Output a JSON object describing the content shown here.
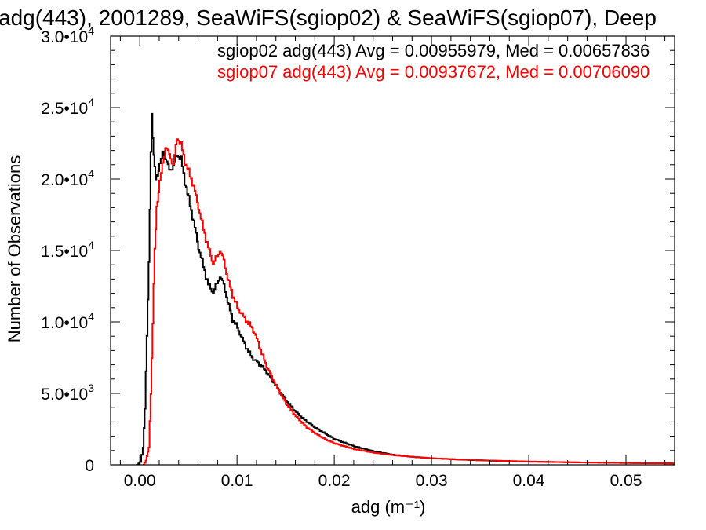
{
  "chart_data": {
    "type": "line",
    "title": "adg(443), 2001289, SeaWiFS(sgiop02) & SeaWiFS(sgiop07), Deep",
    "xlabel": "adg (m⁻¹)",
    "ylabel": "Number of Observations",
    "xlim": [
      -0.003,
      0.055
    ],
    "ylim": [
      0,
      30000
    ],
    "x_ticks": [
      {
        "value": 0.0,
        "label": "0.00"
      },
      {
        "value": 0.01,
        "label": "0.01"
      },
      {
        "value": 0.02,
        "label": "0.02"
      },
      {
        "value": 0.03,
        "label": "0.03"
      },
      {
        "value": 0.04,
        "label": "0.04"
      },
      {
        "value": 0.05,
        "label": "0.05"
      }
    ],
    "y_ticks": [
      {
        "value": 0,
        "mantissa": "0",
        "exponent": ""
      },
      {
        "value": 5000,
        "mantissa": "5.0•10",
        "exponent": "3"
      },
      {
        "value": 10000,
        "mantissa": "1.0•10",
        "exponent": "4"
      },
      {
        "value": 15000,
        "mantissa": "1.5•10",
        "exponent": "4"
      },
      {
        "value": 20000,
        "mantissa": "2.0•10",
        "exponent": "4"
      },
      {
        "value": 25000,
        "mantissa": "2.5•10",
        "exponent": "4"
      },
      {
        "value": 30000,
        "mantissa": "3.0•10",
        "exponent": "4"
      }
    ],
    "grid": false,
    "legend": [
      {
        "text": "sgiop02 adg(443) Avg = 0.00955979, Med = 0.00657836",
        "color": "#000000"
      },
      {
        "text": "sgiop07 adg(443) Avg = 0.00937672, Med = 0.00706090",
        "color": "#ff0000"
      }
    ],
    "series": [
      {
        "name": "sgiop02",
        "color": "#000000",
        "points": [
          [
            -0.0003,
            0
          ],
          [
            0.0,
            200
          ],
          [
            0.0003,
            1200
          ],
          [
            0.0005,
            4000
          ],
          [
            0.0007,
            9000
          ],
          [
            0.0009,
            14000
          ],
          [
            0.0011,
            22000
          ],
          [
            0.0012,
            24600
          ],
          [
            0.0013,
            23000
          ],
          [
            0.0014,
            21500
          ],
          [
            0.0016,
            20000
          ],
          [
            0.0018,
            20400
          ],
          [
            0.002,
            21000
          ],
          [
            0.0023,
            21800
          ],
          [
            0.0026,
            21500
          ],
          [
            0.003,
            20600
          ],
          [
            0.0034,
            20900
          ],
          [
            0.0038,
            21700
          ],
          [
            0.0042,
            21400
          ],
          [
            0.0046,
            19800
          ],
          [
            0.005,
            18600
          ],
          [
            0.0055,
            17000
          ],
          [
            0.006,
            15200
          ],
          [
            0.0065,
            13900
          ],
          [
            0.007,
            12600
          ],
          [
            0.0075,
            12100
          ],
          [
            0.0079,
            12700
          ],
          [
            0.0082,
            13200
          ],
          [
            0.0086,
            12600
          ],
          [
            0.009,
            11400
          ],
          [
            0.0095,
            10200
          ],
          [
            0.01,
            9600
          ],
          [
            0.0105,
            8800
          ],
          [
            0.011,
            8100
          ],
          [
            0.0115,
            7500
          ],
          [
            0.012,
            7200
          ],
          [
            0.0125,
            6900
          ],
          [
            0.013,
            6500
          ],
          [
            0.014,
            5500
          ],
          [
            0.015,
            4500
          ],
          [
            0.016,
            3700
          ],
          [
            0.017,
            3100
          ],
          [
            0.018,
            2600
          ],
          [
            0.019,
            2200
          ],
          [
            0.02,
            1800
          ],
          [
            0.022,
            1300
          ],
          [
            0.024,
            950
          ],
          [
            0.026,
            700
          ],
          [
            0.028,
            560
          ],
          [
            0.03,
            460
          ],
          [
            0.033,
            360
          ],
          [
            0.036,
            290
          ],
          [
            0.04,
            220
          ],
          [
            0.045,
            170
          ],
          [
            0.05,
            130
          ],
          [
            0.055,
            100
          ]
        ]
      },
      {
        "name": "sgiop07",
        "color": "#ff0000",
        "points": [
          [
            0.0003,
            0
          ],
          [
            0.0006,
            300
          ],
          [
            0.0009,
            1200
          ],
          [
            0.0011,
            5000
          ],
          [
            0.0013,
            10000
          ],
          [
            0.0015,
            15000
          ],
          [
            0.0017,
            18000
          ],
          [
            0.002,
            19800
          ],
          [
            0.0023,
            21000
          ],
          [
            0.0026,
            22300
          ],
          [
            0.003,
            21700
          ],
          [
            0.0034,
            21000
          ],
          [
            0.0038,
            22900
          ],
          [
            0.0042,
            22400
          ],
          [
            0.0046,
            21200
          ],
          [
            0.005,
            20500
          ],
          [
            0.0055,
            19500
          ],
          [
            0.006,
            18000
          ],
          [
            0.0065,
            16500
          ],
          [
            0.007,
            15200
          ],
          [
            0.0075,
            14100
          ],
          [
            0.0079,
            14600
          ],
          [
            0.0082,
            15000
          ],
          [
            0.0086,
            14300
          ],
          [
            0.009,
            13000
          ],
          [
            0.0095,
            11900
          ],
          [
            0.01,
            11000
          ],
          [
            0.0105,
            10500
          ],
          [
            0.011,
            10000
          ],
          [
            0.0115,
            9600
          ],
          [
            0.012,
            8800
          ],
          [
            0.0125,
            7800
          ],
          [
            0.013,
            6900
          ],
          [
            0.014,
            5500
          ],
          [
            0.015,
            4300
          ],
          [
            0.016,
            3400
          ],
          [
            0.017,
            2700
          ],
          [
            0.018,
            2200
          ],
          [
            0.019,
            1800
          ],
          [
            0.02,
            1500
          ],
          [
            0.022,
            1100
          ],
          [
            0.024,
            850
          ],
          [
            0.026,
            680
          ],
          [
            0.028,
            560
          ],
          [
            0.03,
            460
          ],
          [
            0.033,
            370
          ],
          [
            0.036,
            300
          ],
          [
            0.04,
            230
          ],
          [
            0.045,
            170
          ],
          [
            0.05,
            130
          ],
          [
            0.055,
            100
          ]
        ]
      }
    ]
  }
}
